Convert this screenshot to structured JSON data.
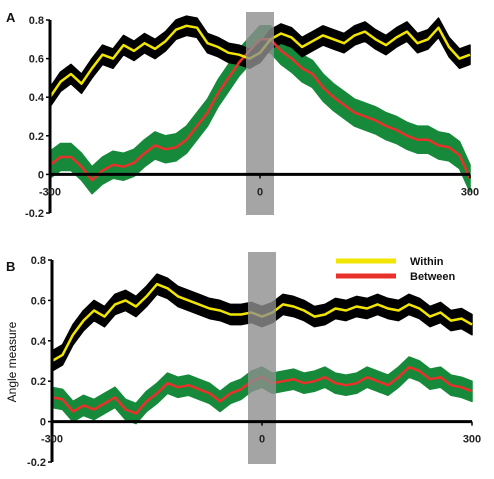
{
  "colors": {
    "within_line": "#f2e600",
    "within_band": "#000000",
    "between_line": "#e8312a",
    "between_band": "#168a3a",
    "highlight": "#8f8f8f"
  },
  "legend": {
    "placement": "top-right",
    "items": [
      "Within",
      "Between"
    ]
  },
  "chart_data": [
    {
      "type": "line",
      "panel_label": "A",
      "xlabel": "",
      "ylabel": "",
      "xlim": [
        -300,
        300
      ],
      "ylim": [
        -0.2,
        0.8
      ],
      "yticks": [
        -0.2,
        0,
        0.2,
        0.4,
        0.6,
        0.8
      ],
      "ytick_labels": [
        "-0.2",
        "0",
        "0.2",
        "0.4",
        "0.6",
        "0.8"
      ],
      "xticks": [
        -300,
        0,
        300
      ],
      "xtick_labels": [
        "-300",
        "0",
        "300"
      ],
      "highlight_range": [
        -20,
        20
      ],
      "series": [
        {
          "name": "Within",
          "band": 0.05,
          "x": [
            -300,
            -285,
            -270,
            -255,
            -240,
            -225,
            -210,
            -195,
            -180,
            -165,
            -150,
            -135,
            -120,
            -105,
            -90,
            -75,
            -60,
            -45,
            -30,
            -15,
            0,
            15,
            30,
            45,
            60,
            75,
            90,
            105,
            120,
            135,
            150,
            165,
            180,
            195,
            210,
            225,
            240,
            255,
            270,
            285,
            300
          ],
          "y": [
            0.4,
            0.48,
            0.52,
            0.47,
            0.55,
            0.62,
            0.6,
            0.67,
            0.64,
            0.68,
            0.65,
            0.69,
            0.75,
            0.77,
            0.76,
            0.68,
            0.66,
            0.63,
            0.62,
            0.6,
            0.63,
            0.7,
            0.73,
            0.71,
            0.66,
            0.69,
            0.72,
            0.7,
            0.68,
            0.72,
            0.74,
            0.7,
            0.67,
            0.71,
            0.74,
            0.68,
            0.7,
            0.76,
            0.66,
            0.6,
            0.62
          ]
        },
        {
          "name": "Between",
          "band": 0.07,
          "x": [
            -300,
            -285,
            -270,
            -255,
            -240,
            -225,
            -210,
            -195,
            -180,
            -165,
            -150,
            -135,
            -120,
            -105,
            -90,
            -75,
            -60,
            -45,
            -30,
            -15,
            0,
            15,
            30,
            45,
            60,
            75,
            90,
            105,
            120,
            135,
            150,
            165,
            180,
            195,
            210,
            225,
            240,
            255,
            270,
            285,
            300
          ],
          "y": [
            0.05,
            0.09,
            0.09,
            0.04,
            -0.03,
            0.02,
            0.05,
            0.04,
            0.06,
            0.11,
            0.15,
            0.13,
            0.14,
            0.18,
            0.25,
            0.32,
            0.42,
            0.5,
            0.58,
            0.64,
            0.7,
            0.7,
            0.64,
            0.6,
            0.55,
            0.52,
            0.45,
            0.4,
            0.36,
            0.32,
            0.3,
            0.28,
            0.25,
            0.23,
            0.2,
            0.18,
            0.18,
            0.15,
            0.14,
            0.1,
            -0.02
          ]
        }
      ]
    },
    {
      "type": "line",
      "panel_label": "B",
      "xlabel": "",
      "ylabel": "Angle measure",
      "xlim": [
        -300,
        300
      ],
      "ylim": [
        -0.2,
        0.8
      ],
      "yticks": [
        -0.2,
        0,
        0.2,
        0.4,
        0.6,
        0.8
      ],
      "ytick_labels": [
        "-0.2",
        "0",
        "0.2",
        "0.4",
        "0.6",
        "0.8"
      ],
      "xticks": [
        -300,
        0,
        300
      ],
      "xtick_labels": [
        "-300",
        "0",
        "300"
      ],
      "highlight_range": [
        -20,
        20
      ],
      "series": [
        {
          "name": "Within",
          "band": 0.05,
          "x": [
            -300,
            -285,
            -270,
            -255,
            -240,
            -225,
            -210,
            -195,
            -180,
            -165,
            -150,
            -135,
            -120,
            -105,
            -90,
            -75,
            -60,
            -45,
            -30,
            -15,
            0,
            15,
            30,
            45,
            60,
            75,
            90,
            105,
            120,
            135,
            150,
            165,
            180,
            195,
            210,
            225,
            240,
            255,
            270,
            285,
            300
          ],
          "y": [
            0.3,
            0.33,
            0.43,
            0.5,
            0.55,
            0.52,
            0.58,
            0.6,
            0.57,
            0.62,
            0.68,
            0.66,
            0.62,
            0.6,
            0.58,
            0.56,
            0.55,
            0.53,
            0.53,
            0.54,
            0.52,
            0.54,
            0.58,
            0.57,
            0.55,
            0.52,
            0.53,
            0.56,
            0.55,
            0.57,
            0.56,
            0.58,
            0.56,
            0.55,
            0.58,
            0.56,
            0.52,
            0.54,
            0.5,
            0.51,
            0.48
          ]
        },
        {
          "name": "Between",
          "band": 0.05,
          "x": [
            -300,
            -285,
            -270,
            -255,
            -240,
            -225,
            -210,
            -195,
            -180,
            -165,
            -150,
            -135,
            -120,
            -105,
            -90,
            -75,
            -60,
            -45,
            -30,
            -15,
            0,
            15,
            30,
            45,
            60,
            75,
            90,
            105,
            120,
            135,
            150,
            165,
            180,
            195,
            210,
            225,
            240,
            255,
            270,
            285,
            300
          ],
          "y": [
            0.12,
            0.11,
            0.05,
            0.08,
            0.06,
            0.09,
            0.12,
            0.06,
            0.04,
            0.1,
            0.14,
            0.19,
            0.17,
            0.18,
            0.16,
            0.14,
            0.1,
            0.14,
            0.16,
            0.2,
            0.22,
            0.19,
            0.2,
            0.21,
            0.19,
            0.2,
            0.22,
            0.19,
            0.18,
            0.19,
            0.22,
            0.2,
            0.18,
            0.22,
            0.27,
            0.25,
            0.21,
            0.22,
            0.18,
            0.17,
            0.15
          ]
        }
      ]
    }
  ]
}
